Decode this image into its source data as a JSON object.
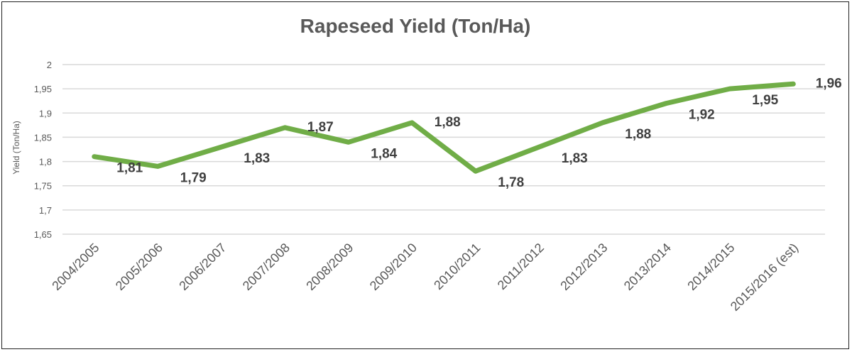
{
  "chart_data": {
    "type": "line",
    "title": "Rapeseed Yield (Ton/Ha)",
    "xlabel": "",
    "ylabel": "Yield (Ton/Ha)",
    "categories": [
      "2004/2005",
      "2005/2006",
      "2006/2007",
      "2007/2008",
      "2008/2009",
      "2009/2010",
      "2010/2011",
      "2011/2012",
      "2012/2013",
      "2013/2014",
      "2014/2015",
      "2015/2016 (est)"
    ],
    "series": [
      {
        "values": [
          1.81,
          1.79,
          1.83,
          1.87,
          1.84,
          1.88,
          1.78,
          1.83,
          1.88,
          1.92,
          1.95,
          1.96
        ]
      }
    ],
    "data_labels": [
      "1,81",
      "1,79",
      "1,83",
      "1,87",
      "1,84",
      "1,88",
      "1,78",
      "1,83",
      "1,88",
      "1,92",
      "1,95",
      "1,96"
    ],
    "ylim": [
      1.65,
      2
    ],
    "yticks": [
      1.65,
      1.7,
      1.75,
      1.8,
      1.85,
      1.9,
      1.95,
      2
    ],
    "ytick_labels": [
      "1,65",
      "1,7",
      "1,75",
      "1,8",
      "1,85",
      "1,9",
      "1,95",
      "2"
    ],
    "grid": true,
    "legend": false,
    "line_color": "#70ad47"
  }
}
